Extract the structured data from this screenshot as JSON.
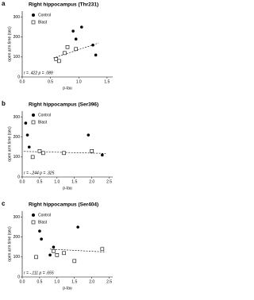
{
  "chart_data": [
    {
      "type": "scatter",
      "panel_label": "a",
      "title": "Right hippocampus (Thr231)",
      "x_label": "p-tau",
      "y_label": "open arm time (sec)",
      "annotation": "r = .422 p = .089",
      "xlim": [
        0,
        1.6
      ],
      "ylim": [
        0,
        330
      ],
      "xticks": [
        {
          "value": 0,
          "label": "0.0"
        },
        0.5,
        {
          "value": 1,
          "label": "1.0"
        },
        1.5
      ],
      "yticks": [
        0,
        100,
        200,
        300
      ],
      "series": [
        {
          "name": "Control",
          "marker": "circle",
          "color": "#000000",
          "x": [
            0.95,
            1.05,
            1.25,
            0.9,
            1.3
          ],
          "values": [
            190,
            250,
            160,
            230,
            110
          ]
        },
        {
          "name": "Blast",
          "marker": "square",
          "color": "#000000",
          "x": [
            0.6,
            0.75,
            0.8,
            0.95,
            0.65
          ],
          "values": [
            90,
            120,
            150,
            140,
            80
          ]
        }
      ],
      "fit_line": {
        "x": [
          0.55,
          1.35
        ],
        "y": [
          95,
          170
        ]
      }
    },
    {
      "type": "scatter",
      "panel_label": "b",
      "title": "Right hippocampus (Ser396)",
      "x_label": "p-tau",
      "y_label": "open arm time (sec)",
      "annotation": "r = -.244 p = .325",
      "xlim": [
        0,
        2.6
      ],
      "ylim": [
        0,
        330
      ],
      "xticks": [
        {
          "value": 0,
          "label": "0.0"
        },
        0.5,
        {
          "value": 1,
          "label": "1.0"
        },
        1.5,
        {
          "value": 2,
          "label": "2.0"
        },
        2.5
      ],
      "yticks": [
        0,
        100,
        200,
        300
      ],
      "series": [
        {
          "name": "Control",
          "marker": "circle",
          "color": "#000000",
          "x": [
            0.1,
            0.15,
            0.2,
            0.3,
            1.9,
            2.3
          ],
          "values": [
            270,
            210,
            150,
            100,
            210,
            110
          ]
        },
        {
          "name": "Blast",
          "marker": "square",
          "color": "#000000",
          "x": [
            0.5,
            0.6,
            1.2,
            2.0,
            0.3
          ],
          "values": [
            130,
            120,
            120,
            130,
            100
          ]
        }
      ],
      "fit_line": {
        "x": [
          0.05,
          2.4
        ],
        "y": [
          128,
          118
        ]
      }
    },
    {
      "type": "scatter",
      "panel_label": "c",
      "title": "Right hippocampus (Ser404)",
      "x_label": "p-tau",
      "y_label": "open arm time (sec)",
      "annotation": "r = -.111 p = .655",
      "xlim": [
        0,
        2.6
      ],
      "ylim": [
        0,
        330
      ],
      "xticks": [
        {
          "value": 0,
          "label": "0.0"
        },
        0.5,
        {
          "value": 1,
          "label": "1.0"
        },
        1.5,
        {
          "value": 2,
          "label": "2.0"
        },
        2.5
      ],
      "yticks": [
        0,
        100,
        200,
        300
      ],
      "series": [
        {
          "name": "Control",
          "marker": "circle",
          "color": "#000000",
          "x": [
            0.5,
            0.55,
            0.8,
            1.6,
            0.9
          ],
          "values": [
            230,
            190,
            110,
            250,
            150
          ]
        },
        {
          "name": "Blast",
          "marker": "square",
          "color": "#000000",
          "x": [
            0.9,
            1.0,
            1.2,
            1.5,
            2.3,
            0.4
          ],
          "values": [
            130,
            110,
            120,
            80,
            140,
            100
          ]
        }
      ],
      "fit_line": {
        "x": [
          0.8,
          2.4
        ],
        "y": [
          140,
          125
        ]
      }
    }
  ]
}
